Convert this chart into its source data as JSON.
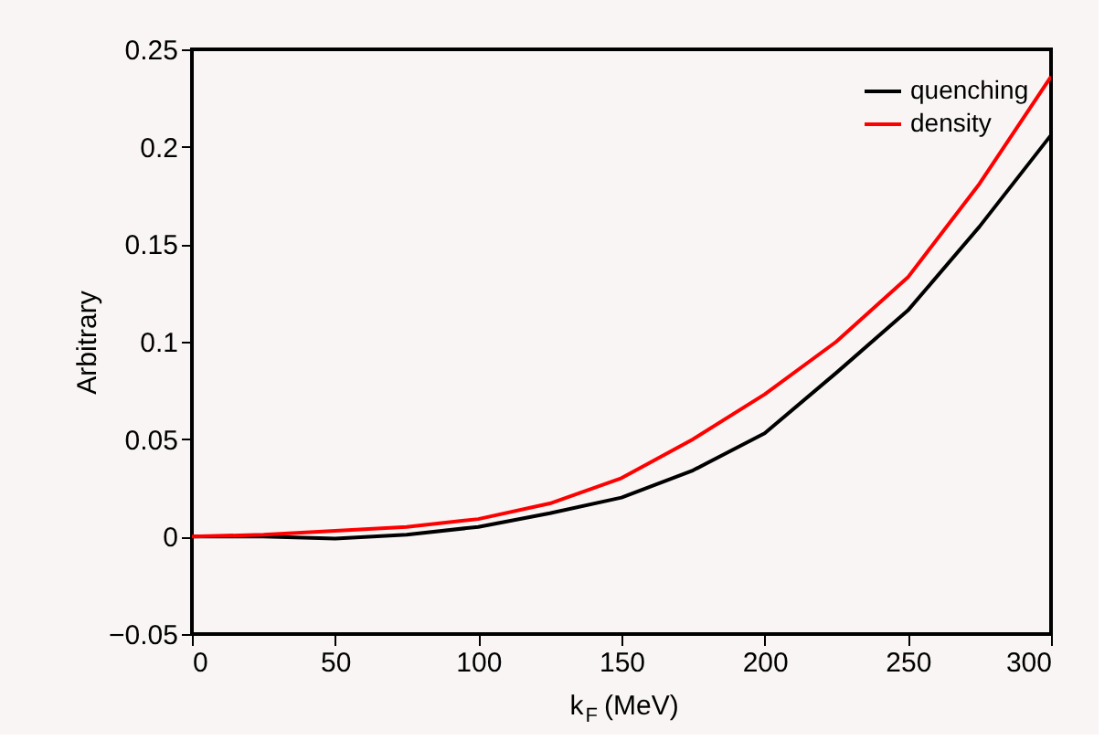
{
  "chart_data": {
    "type": "line",
    "xlabel": "k$_{F}$ (MeV)",
    "ylabel": "Arbitrary",
    "x": [
      0,
      25,
      50,
      75,
      100,
      125,
      150,
      175,
      200,
      225,
      250,
      275,
      300
    ],
    "series": [
      {
        "name": "quenching",
        "color": "#000000",
        "values": [
          0,
          0,
          -0.001,
          0.001,
          0.005,
          0.012,
          0.02,
          0.034,
          0.053,
          0.084,
          0.116,
          0.159,
          0.206
        ]
      },
      {
        "name": "density",
        "color": "#ff0000",
        "values": [
          0,
          0.001,
          0.003,
          0.005,
          0.009,
          0.017,
          0.03,
          0.05,
          0.073,
          0.1,
          0.133,
          0.181,
          0.236
        ]
      }
    ],
    "xlim": [
      0,
      300
    ],
    "ylim": [
      -0.05,
      0.25
    ],
    "xticks": [
      0,
      50,
      100,
      150,
      200,
      250,
      300
    ],
    "yticks": [
      -0.05,
      0,
      0.05,
      0.1,
      0.15,
      0.2,
      0.25
    ],
    "legend": "top right",
    "grid": false,
    "line_style": "solid",
    "marker": "none"
  }
}
